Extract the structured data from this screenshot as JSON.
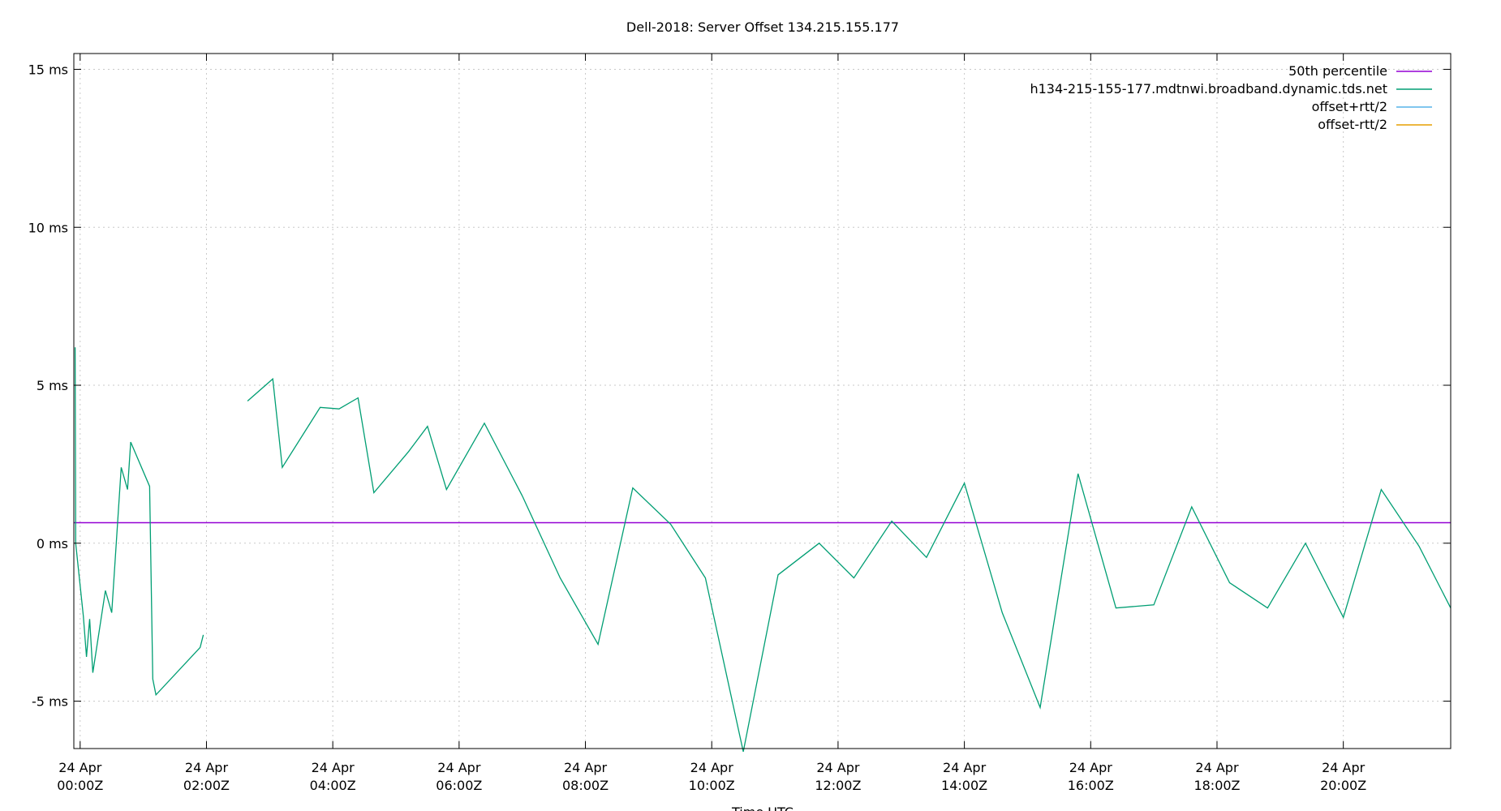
{
  "chart_data": {
    "type": "line",
    "title": "Dell-2018: Server Offset 134.215.155.177",
    "xlabel": "Time UTC",
    "ylabel": "",
    "x_unit": "hours since 24 Apr 00:00Z",
    "xlim": [
      -0.1,
      21.7
    ],
    "ylim": [
      -6.5,
      15.5
    ],
    "x_ticks": [
      {
        "x": 0,
        "line1": "24 Apr",
        "line2": "00:00Z"
      },
      {
        "x": 2,
        "line1": "24 Apr",
        "line2": "02:00Z"
      },
      {
        "x": 4,
        "line1": "24 Apr",
        "line2": "04:00Z"
      },
      {
        "x": 6,
        "line1": "24 Apr",
        "line2": "06:00Z"
      },
      {
        "x": 8,
        "line1": "24 Apr",
        "line2": "08:00Z"
      },
      {
        "x": 10,
        "line1": "24 Apr",
        "line2": "10:00Z"
      },
      {
        "x": 12,
        "line1": "24 Apr",
        "line2": "12:00Z"
      },
      {
        "x": 14,
        "line1": "24 Apr",
        "line2": "14:00Z"
      },
      {
        "x": 16,
        "line1": "24 Apr",
        "line2": "16:00Z"
      },
      {
        "x": 18,
        "line1": "24 Apr",
        "line2": "18:00Z"
      },
      {
        "x": 20,
        "line1": "24 Apr",
        "line2": "20:00Z"
      }
    ],
    "y_ticks": [
      {
        "y": -5,
        "label": "-5 ms"
      },
      {
        "y": 0,
        "label": "0 ms"
      },
      {
        "y": 5,
        "label": "5 ms"
      },
      {
        "y": 10,
        "label": "10 ms"
      },
      {
        "y": 15,
        "label": "15 ms"
      }
    ],
    "grid": true,
    "legend_position": "top-right",
    "series": [
      {
        "name": "50th percentile",
        "color": "#9400d3",
        "kind": "hline",
        "y": 0.65
      },
      {
        "name": "h134-215-155-177.mdtnwi.broadband.dynamic.tds.net",
        "color": "#009e73",
        "kind": "line",
        "segments": [
          [
            [
              -0.08,
              6.2
            ],
            [
              -0.07,
              0.0
            ],
            [
              0.05,
              -2.3
            ],
            [
              0.1,
              -3.6
            ],
            [
              0.15,
              -2.4
            ],
            [
              0.2,
              -4.1
            ],
            [
              0.4,
              -1.5
            ],
            [
              0.5,
              -2.2
            ],
            [
              0.65,
              2.4
            ],
            [
              0.75,
              1.7
            ],
            [
              0.8,
              3.2
            ],
            [
              1.1,
              1.8
            ],
            [
              1.15,
              -4.3
            ],
            [
              1.2,
              -4.8
            ],
            [
              1.9,
              -3.3
            ],
            [
              1.95,
              -2.9
            ]
          ],
          [
            [
              2.65,
              4.5
            ],
            [
              3.05,
              5.2
            ],
            [
              3.2,
              2.4
            ],
            [
              3.8,
              4.3
            ],
            [
              4.1,
              4.25
            ],
            [
              4.4,
              4.6
            ],
            [
              4.65,
              1.6
            ],
            [
              5.2,
              2.9
            ],
            [
              5.5,
              3.7
            ],
            [
              5.8,
              1.7
            ],
            [
              6.4,
              3.8
            ],
            [
              7.0,
              1.5
            ],
            [
              7.6,
              -1.1
            ],
            [
              8.2,
              -3.2
            ],
            [
              8.75,
              1.75
            ],
            [
              9.35,
              0.6
            ],
            [
              9.9,
              -1.1
            ],
            [
              10.5,
              -6.6
            ],
            [
              11.05,
              -1.0
            ],
            [
              11.7,
              0.0
            ],
            [
              12.25,
              -1.1
            ],
            [
              12.85,
              0.7
            ],
            [
              13.4,
              -0.45
            ],
            [
              14.0,
              1.9
            ],
            [
              14.6,
              -2.2
            ],
            [
              15.2,
              -5.2
            ],
            [
              15.8,
              2.2
            ],
            [
              16.4,
              -2.05
            ],
            [
              17.0,
              -1.95
            ],
            [
              17.6,
              1.15
            ],
            [
              18.2,
              -1.25
            ],
            [
              18.8,
              -2.05
            ],
            [
              19.4,
              0.0
            ],
            [
              20.0,
              -2.35
            ],
            [
              20.6,
              1.7
            ],
            [
              21.2,
              -0.1
            ],
            [
              21.7,
              -2.05
            ]
          ]
        ]
      },
      {
        "name": "offset+rtt/2",
        "color": "#56b4e9",
        "kind": "line",
        "segments": []
      },
      {
        "name": "offset-rtt/2",
        "color": "#e69f00",
        "kind": "line",
        "segments": []
      }
    ]
  }
}
